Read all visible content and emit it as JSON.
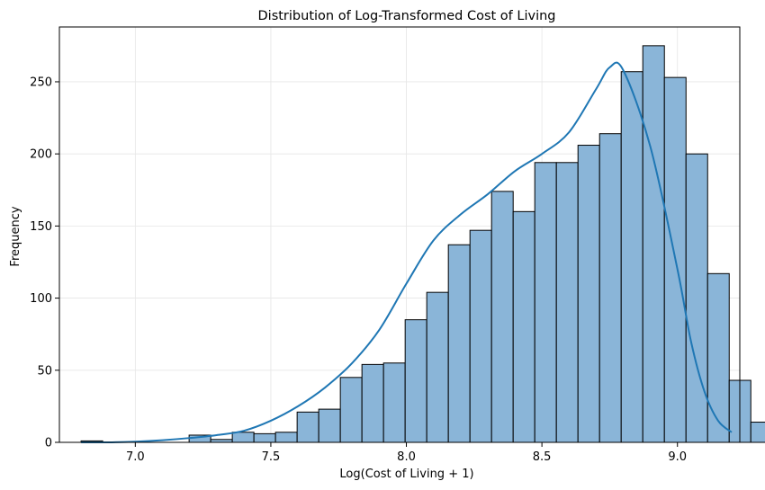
{
  "chart_data": {
    "type": "bar",
    "title": "Distribution of Log-Transformed Cost of Living",
    "xlabel": "Log(Cost of Living + 1)",
    "ylabel": "Frequency",
    "xlim": [
      6.72,
      9.23
    ],
    "ylim": [
      0,
      288
    ],
    "xticks": [
      7.0,
      7.5,
      8.0,
      8.5,
      9.0
    ],
    "xtick_labels": [
      "7.0",
      "7.5",
      "8.0",
      "8.5",
      "9.0"
    ],
    "yticks": [
      0,
      50,
      100,
      150,
      200,
      250
    ],
    "ytick_labels": [
      "0",
      "50",
      "100",
      "150",
      "200",
      "250"
    ],
    "grid": true,
    "bar_color": "#8ab5d8",
    "bar_edge_color": "#000000",
    "kde_color": "#1f77b4",
    "bins": {
      "start": 6.8,
      "width": 0.0797,
      "counts": [
        1,
        0,
        0,
        0,
        0,
        5,
        2,
        7,
        6,
        7,
        21,
        23,
        45,
        54,
        55,
        85,
        104,
        137,
        147,
        174,
        160,
        194,
        194,
        206,
        214,
        257,
        275,
        253,
        200,
        117,
        43,
        14
      ]
    },
    "kde": {
      "x": [
        6.8,
        6.9,
        7.0,
        7.1,
        7.2,
        7.3,
        7.4,
        7.5,
        7.6,
        7.7,
        7.8,
        7.9,
        8.0,
        8.1,
        8.2,
        8.3,
        8.4,
        8.5,
        8.6,
        8.7,
        8.75,
        8.8,
        8.9,
        9.0,
        9.05,
        9.1,
        9.15,
        9.2
      ],
      "y": [
        0,
        0,
        0.5,
        1.5,
        3,
        5,
        8,
        15,
        25,
        38,
        55,
        78,
        110,
        140,
        158,
        172,
        188,
        200,
        215,
        245,
        260,
        258,
        205,
        120,
        70,
        35,
        15,
        7
      ]
    }
  }
}
